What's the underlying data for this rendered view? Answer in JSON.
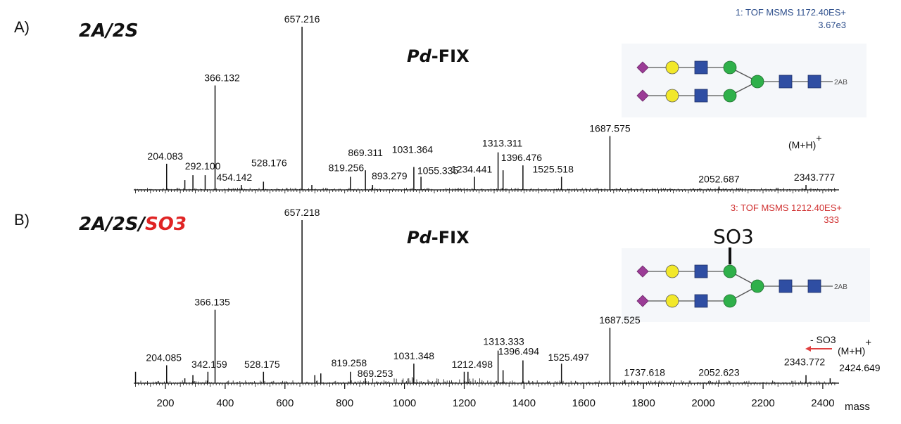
{
  "chart_data": [
    {
      "type": "bar",
      "panel_label": "A)",
      "title": "2A/2S",
      "title_highlight": "",
      "subtitle_italic": "Pd",
      "subtitle_rest": "-FIX",
      "instrument_line1": "1: TOF MSMS 1172.40ES+",
      "instrument_line2": "3.67e3",
      "instrument_color": "#2e4f8c",
      "xlim": [
        95,
        2445
      ],
      "ylim": [
        0,
        100
      ],
      "ylabel": "",
      "glycan": {
        "reducing_end": "2AB",
        "modification": ""
      },
      "precursor_label": "(M+H)",
      "precursor_charge": "+",
      "peaks": [
        {
          "mz": 204.083,
          "intensity": 16,
          "label": "204.083"
        },
        {
          "mz": 265,
          "intensity": 6,
          "label": ""
        },
        {
          "mz": 292.1,
          "intensity": 9,
          "label": "292.100"
        },
        {
          "mz": 333,
          "intensity": 9,
          "label": ""
        },
        {
          "mz": 366.132,
          "intensity": 64,
          "label": "366.132"
        },
        {
          "mz": 454.142,
          "intensity": 3,
          "label": "454.142"
        },
        {
          "mz": 528.176,
          "intensity": 5,
          "label": "528.176"
        },
        {
          "mz": 657.216,
          "intensity": 100,
          "label": "657.216"
        },
        {
          "mz": 690,
          "intensity": 3,
          "label": ""
        },
        {
          "mz": 819.256,
          "intensity": 8,
          "label": "819.256"
        },
        {
          "mz": 869.311,
          "intensity": 12,
          "label": "869.311"
        },
        {
          "mz": 893.279,
          "intensity": 3,
          "label": "893.279"
        },
        {
          "mz": 1031.364,
          "intensity": 14,
          "label": "1031.364"
        },
        {
          "mz": 1055.335,
          "intensity": 8,
          "label": "1055.335"
        },
        {
          "mz": 1234.441,
          "intensity": 8,
          "label": "1234.441"
        },
        {
          "mz": 1313.311,
          "intensity": 23,
          "label": "1313.311"
        },
        {
          "mz": 1330,
          "intensity": 12,
          "label": ""
        },
        {
          "mz": 1396.476,
          "intensity": 15,
          "label": "1396.476"
        },
        {
          "mz": 1525.518,
          "intensity": 8,
          "label": "1525.518"
        },
        {
          "mz": 1687.575,
          "intensity": 33,
          "label": "1687.575"
        },
        {
          "mz": 2052.687,
          "intensity": 2,
          "label": "2052.687"
        },
        {
          "mz": 2343.777,
          "intensity": 3,
          "label": "2343.777"
        }
      ]
    },
    {
      "type": "bar",
      "panel_label": "B)",
      "title": "2A/2S/",
      "title_highlight": "SO3",
      "title_highlight_color": "#e02424",
      "subtitle_italic": "Pd",
      "subtitle_rest": "-FIX",
      "instrument_line1": "3: TOF MSMS 1212.40ES+",
      "instrument_line2": "333",
      "instrument_color": "#d03030",
      "xlabel": "mass",
      "xlim": [
        95,
        2445
      ],
      "xticks": [
        200,
        400,
        600,
        800,
        1000,
        1200,
        1400,
        1600,
        1800,
        2000,
        2200,
        2400
      ],
      "ylim": [
        0,
        100
      ],
      "glycan": {
        "reducing_end": "2AB",
        "modification": "SO3"
      },
      "precursor_label": "(M+H)",
      "precursor_charge": "+",
      "loss_annotation": "- SO3",
      "loss_color": "#e04040",
      "peaks": [
        {
          "mz": 100,
          "intensity": 7,
          "label": ""
        },
        {
          "mz": 204.085,
          "intensity": 11,
          "label": "204.085"
        },
        {
          "mz": 265,
          "intensity": 3,
          "label": ""
        },
        {
          "mz": 292,
          "intensity": 5,
          "label": ""
        },
        {
          "mz": 342.159,
          "intensity": 7,
          "label": "342.159"
        },
        {
          "mz": 366.135,
          "intensity": 45,
          "label": "366.135"
        },
        {
          "mz": 528.175,
          "intensity": 7,
          "label": "528.175"
        },
        {
          "mz": 657.218,
          "intensity": 100,
          "label": "657.218"
        },
        {
          "mz": 700,
          "intensity": 5,
          "label": ""
        },
        {
          "mz": 720,
          "intensity": 6,
          "label": ""
        },
        {
          "mz": 819.258,
          "intensity": 7,
          "label": "819.258"
        },
        {
          "mz": 869.253,
          "intensity": 3,
          "label": "869.253"
        },
        {
          "mz": 1031.348,
          "intensity": 12,
          "label": "1031.348"
        },
        {
          "mz": 1200,
          "intensity": 7,
          "label": ""
        },
        {
          "mz": 1212.498,
          "intensity": 7,
          "label": "1212.498"
        },
        {
          "mz": 1313.333,
          "intensity": 20,
          "label": "1313.333"
        },
        {
          "mz": 1330,
          "intensity": 8,
          "label": ""
        },
        {
          "mz": 1396.494,
          "intensity": 14,
          "label": "1396.494"
        },
        {
          "mz": 1525.497,
          "intensity": 12,
          "label": "1525.497"
        },
        {
          "mz": 1687.525,
          "intensity": 34,
          "label": "1687.525"
        },
        {
          "mz": 1737.618,
          "intensity": 2,
          "label": "1737.618"
        },
        {
          "mz": 2052.623,
          "intensity": 2,
          "label": "2052.623"
        },
        {
          "mz": 2343.772,
          "intensity": 5,
          "label": "2343.772"
        },
        {
          "mz": 2424.649,
          "intensity": 3,
          "label": "2424.649"
        }
      ]
    }
  ],
  "glycan_colors": {
    "sialic_acid": "#9b3c96",
    "galactose": "#f2e82a",
    "glcnac": "#2f4ea3",
    "mannose": "#2fb04a",
    "box": "#f5f7fa"
  }
}
